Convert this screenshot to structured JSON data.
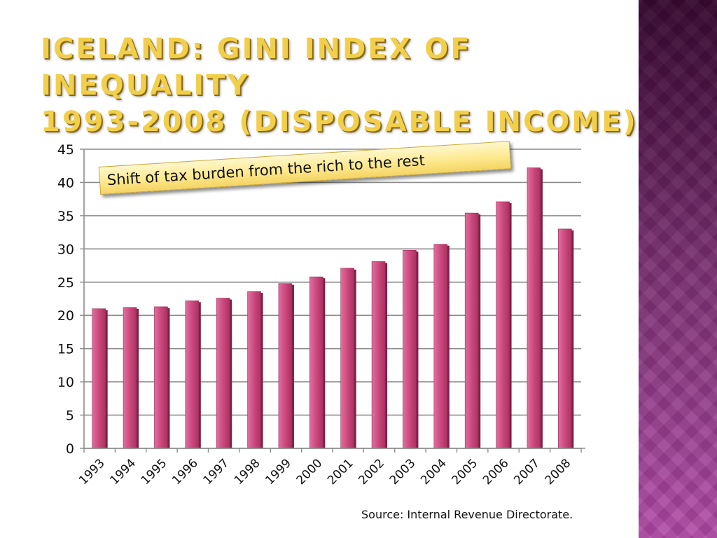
{
  "slide": {
    "title_line1": "Iceland: Gini index of inequality",
    "title_line2": "1993-2008 (disposable income)",
    "callout": "Shift of tax burden from the rich to the rest",
    "source": "Source: Internal Revenue Directorate."
  },
  "colors": {
    "title": "#f2cf4b",
    "bar": "#c9457a",
    "bar_dark": "#7e1f48",
    "side_band": "#7a2a6e",
    "gridline": "#8c8c8c"
  },
  "chart_data": {
    "type": "bar",
    "categories": [
      "1993",
      "1994",
      "1995",
      "1996",
      "1997",
      "1998",
      "1999",
      "2000",
      "2001",
      "2002",
      "2003",
      "2004",
      "2005",
      "2006",
      "2007",
      "2008"
    ],
    "series": [
      {
        "values": [
          21,
          21.2,
          21.3,
          22.2,
          22.6,
          23.6,
          24.8,
          25.8,
          27.1,
          28.1,
          29.8,
          30.7,
          35.4,
          37.1,
          42.2,
          33.0
        ]
      }
    ],
    "yticks": [
      "0",
      "5",
      "10",
      "15",
      "20",
      "25",
      "30",
      "35",
      "40",
      "45"
    ],
    "ylim": [
      0,
      45
    ],
    "grid": true,
    "legend": "none"
  }
}
